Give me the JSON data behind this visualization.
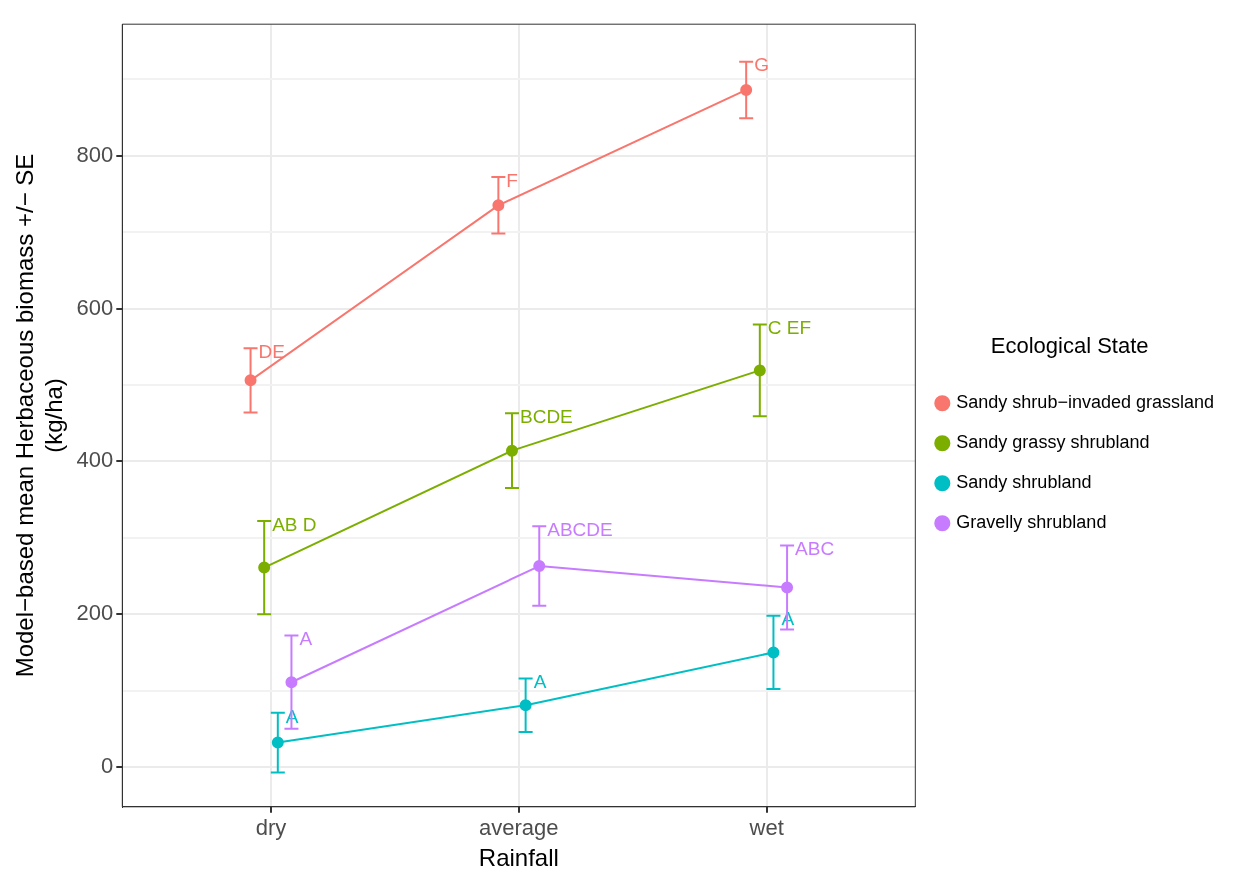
{
  "chart_data": {
    "type": "line",
    "xlabel": "Rainfall",
    "ylabel": "Model−based mean Herbaceous biomass +/− SE\n(kg/ha)",
    "legend_title": "Ecological State",
    "categories": [
      "dry",
      "average",
      "wet"
    ],
    "series": [
      {
        "name": "Sandy shrub−invaded grassland",
        "color": "#f8766d",
        "values": [
          506,
          735,
          886
        ],
        "errors": [
          42,
          37,
          37
        ],
        "value_labels": [
          "DE",
          "F",
          "G"
        ]
      },
      {
        "name": "Sandy grassy shrubland",
        "color": "#7cae00",
        "values": [
          261,
          414,
          519
        ],
        "errors": [
          61,
          49,
          60
        ],
        "value_labels": [
          "AB D",
          "BCDE",
          "C EF"
        ]
      },
      {
        "name": "Sandy shrubland",
        "color": "#00bfc4",
        "values": [
          32,
          81,
          150
        ],
        "errors": [
          39,
          35,
          48
        ],
        "value_labels": [
          "A",
          "A",
          "A"
        ]
      },
      {
        "name": "Gravelly shrubland",
        "color": "#c77cff",
        "values": [
          111,
          263,
          235
        ],
        "errors": [
          61,
          52,
          55
        ],
        "value_labels": [
          "A",
          "ABCDE",
          "ABC"
        ]
      }
    ],
    "ylim": [
      -52,
      972
    ],
    "yticks": [
      0,
      {
        "value": 100,
        "label": null
      },
      200,
      {
        "value": 300,
        "label": null
      },
      400,
      {
        "value": 500,
        "label": null
      },
      600,
      {
        "value": 700,
        "label": null
      },
      800,
      {
        "value": 900,
        "label": null
      }
    ],
    "grid": true,
    "legend": "right",
    "marker": "circle",
    "line_style": "solid"
  }
}
